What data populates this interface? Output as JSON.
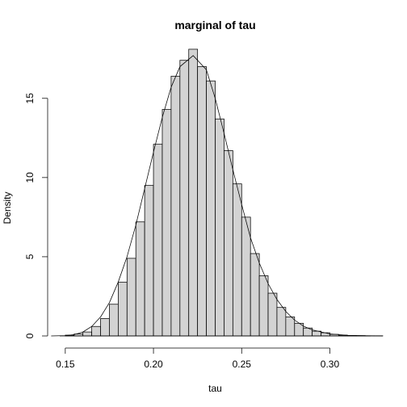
{
  "chart_data": {
    "type": "bar",
    "title": "marginal of tau",
    "xlabel": "tau",
    "ylabel": "Density",
    "xlim": [
      0.14,
      0.33
    ],
    "ylim": [
      0,
      18.2
    ],
    "x_ticks": [
      0.15,
      0.2,
      0.25,
      0.3
    ],
    "x_tick_labels": [
      "0.15",
      "0.20",
      "0.25",
      "0.30"
    ],
    "y_ticks": [
      0,
      5,
      10,
      15
    ],
    "y_tick_labels": [
      "0",
      "5",
      "10",
      "15"
    ],
    "bin_width": 0.005,
    "bin_starts": [
      0.15,
      0.155,
      0.16,
      0.165,
      0.17,
      0.175,
      0.18,
      0.185,
      0.19,
      0.195,
      0.2,
      0.205,
      0.21,
      0.215,
      0.22,
      0.225,
      0.23,
      0.235,
      0.24,
      0.245,
      0.25,
      0.255,
      0.26,
      0.265,
      0.27,
      0.275,
      0.28,
      0.285,
      0.29,
      0.295,
      0.3,
      0.305,
      0.31,
      0.315,
      0.32,
      0.325
    ],
    "values": [
      0.05,
      0.12,
      0.25,
      0.6,
      1.1,
      2.0,
      3.4,
      4.9,
      7.2,
      9.5,
      12.1,
      14.3,
      16.4,
      17.4,
      18.1,
      17.0,
      16.1,
      13.7,
      11.7,
      9.6,
      7.5,
      5.2,
      3.8,
      2.7,
      1.8,
      1.2,
      0.8,
      0.5,
      0.3,
      0.2,
      0.1,
      0.05,
      0.03,
      0.02,
      0.01,
      0.01
    ],
    "density_curve": {
      "x": [
        0.142,
        0.15,
        0.155,
        0.16,
        0.165,
        0.17,
        0.175,
        0.18,
        0.185,
        0.19,
        0.195,
        0.2,
        0.205,
        0.21,
        0.215,
        0.2225,
        0.23,
        0.235,
        0.24,
        0.245,
        0.25,
        0.255,
        0.26,
        0.265,
        0.27,
        0.275,
        0.28,
        0.285,
        0.29,
        0.3,
        0.31,
        0.32,
        0.33
      ],
      "y": [
        0.0,
        0.02,
        0.08,
        0.25,
        0.6,
        1.2,
        2.1,
        3.4,
        5.0,
        7.0,
        9.3,
        11.6,
        13.8,
        15.7,
        17.0,
        17.7,
        16.8,
        15.0,
        12.8,
        10.5,
        8.3,
        6.2,
        4.6,
        3.3,
        2.3,
        1.55,
        1.0,
        0.62,
        0.38,
        0.13,
        0.04,
        0.01,
        0.0
      ]
    },
    "grid": false,
    "legend": "none"
  }
}
